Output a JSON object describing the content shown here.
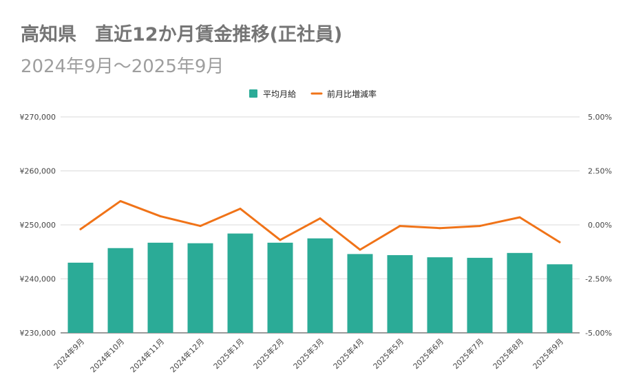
{
  "title": "高知県　直近12か月賃金推移(正社員)",
  "subtitle": "2024年9月～2025年9月",
  "chart_data": {
    "type": "bar",
    "title": "高知県　直近12か月賃金推移(正社員)",
    "subtitle": "2024年9月～2025年9月",
    "categories": [
      "2024年9月",
      "2024年10月",
      "2024年11月",
      "2024年12月",
      "2025年1月",
      "2025年2月",
      "2025年3月",
      "2025年4月",
      "2025年5月",
      "2025年6月",
      "2025年7月",
      "2025年8月",
      "2025年9月"
    ],
    "series": [
      {
        "name": "平均月給",
        "type": "bar",
        "axis": "left",
        "color": "#2bab97",
        "values": [
          243000,
          245700,
          246700,
          246600,
          248400,
          246700,
          247500,
          244600,
          244400,
          244000,
          243900,
          244800,
          242700
        ]
      },
      {
        "name": "前月比増減率",
        "type": "line",
        "axis": "right",
        "color": "#f07318",
        "values": [
          -0.2,
          1.1,
          0.4,
          -0.05,
          0.75,
          -0.7,
          0.3,
          -1.15,
          -0.05,
          -0.15,
          -0.05,
          0.35,
          -0.8
        ]
      }
    ],
    "y_left": {
      "min": 230000,
      "max": 270000,
      "ticks": [
        "¥230,000",
        "¥240,000",
        "¥250,000",
        "¥260,000",
        "¥270,000"
      ]
    },
    "y_right": {
      "min": -5.0,
      "max": 5.0,
      "ticks": [
        "-5.00%",
        "-2.50%",
        "0.00%",
        "2.50%",
        "5.00%"
      ]
    },
    "legend_position": "top-center",
    "grid": true
  }
}
